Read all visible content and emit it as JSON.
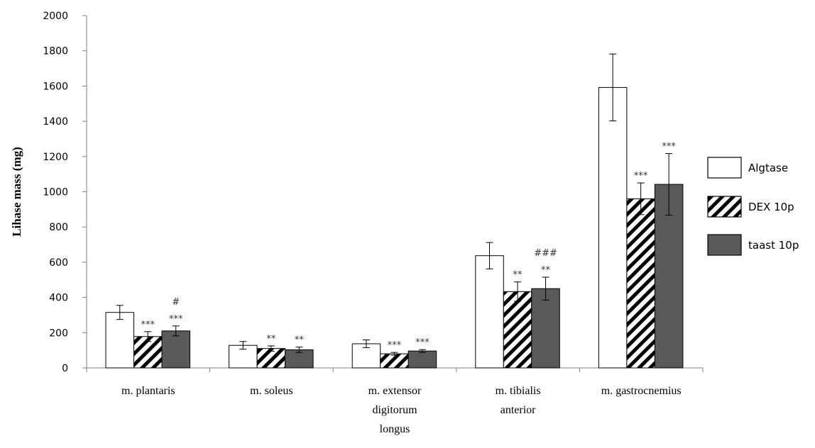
{
  "chart_data": {
    "type": "bar",
    "ylabel": "Lihase mass (mg)",
    "xlabel": "",
    "ylim": [
      0,
      2000
    ],
    "yticks": [
      0,
      200,
      400,
      600,
      800,
      1000,
      1200,
      1400,
      1600,
      1800,
      2000
    ],
    "categories": [
      [
        "m. plantaris"
      ],
      [
        "m. soleus"
      ],
      [
        "m. extensor",
        "digitorum",
        "longus"
      ],
      [
        "m. tibialis",
        "anterior"
      ],
      [
        "m. gastrocnemius"
      ]
    ],
    "series": [
      {
        "name": "Algtase",
        "fill": "#ffffff",
        "pattern": "none",
        "values": [
          315,
          128,
          137,
          637,
          1592
        ],
        "errors": [
          40,
          22,
          22,
          75,
          190
        ],
        "annotations": [
          [],
          [],
          [],
          [],
          []
        ]
      },
      {
        "name": "DEX 10p",
        "fill": "hatch",
        "pattern": "diagonal",
        "values": [
          178,
          110,
          80,
          433,
          960
        ],
        "errors": [
          28,
          15,
          8,
          55,
          90
        ],
        "annotations": [
          [
            "***"
          ],
          [
            "**"
          ],
          [
            "***"
          ],
          [
            "**"
          ],
          [
            "***"
          ]
        ]
      },
      {
        "name": "taast 10p",
        "fill": "#595959",
        "pattern": "none",
        "values": [
          210,
          103,
          96,
          450,
          1042
        ],
        "errors": [
          28,
          15,
          8,
          65,
          175
        ],
        "annotations": [
          [
            "#",
            "***"
          ],
          [
            "**"
          ],
          [
            "***"
          ],
          [
            "###",
            "**"
          ],
          [
            "***"
          ]
        ]
      }
    ],
    "legend_position": "right",
    "grid": false
  }
}
